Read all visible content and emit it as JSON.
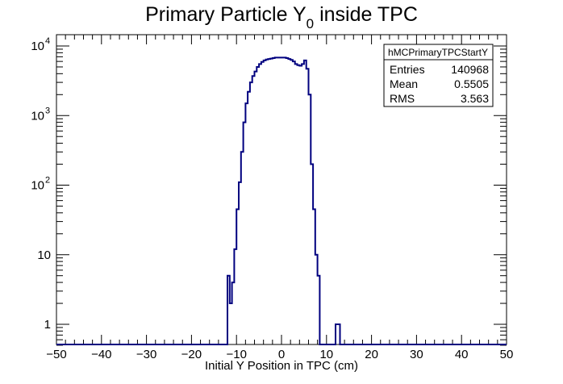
{
  "chart_data": {
    "type": "histogram",
    "title": "Primary Particle Y",
    "title_subscript": "0",
    "title_suffix": " inside TPC",
    "xlabel": "Initial Y Position in TPC (cm)",
    "ylabel": "",
    "xlim": [
      -50,
      50
    ],
    "ylim": [
      0.5,
      12000
    ],
    "yscale": "log",
    "grid": false,
    "x_ticks": [
      -50,
      -40,
      -30,
      -20,
      -10,
      0,
      10,
      20,
      30,
      40,
      50
    ],
    "x_tick_labels": [
      "−50",
      "−40",
      "−30",
      "−20",
      "−10",
      "0",
      "10",
      "20",
      "30",
      "40",
      "50"
    ],
    "y_ticks": [
      1,
      10,
      100,
      1000,
      10000
    ],
    "y_tick_base": [
      "1",
      "10",
      "10",
      "10",
      "10"
    ],
    "y_tick_exp": [
      "",
      "",
      "2",
      "3",
      "4"
    ],
    "line_color": "#00007f",
    "bin_width": 0.5,
    "x": [
      -12.0,
      -11.5,
      -11.0,
      -10.5,
      -10.0,
      -9.5,
      -9.0,
      -8.5,
      -8.0,
      -7.5,
      -7.0,
      -6.5,
      -6.0,
      -5.5,
      -5.0,
      -4.5,
      -4.0,
      -3.5,
      -3.0,
      -2.5,
      -2.0,
      -1.5,
      -1.0,
      -0.5,
      0.0,
      0.5,
      1.0,
      1.5,
      2.0,
      2.5,
      3.0,
      3.5,
      4.0,
      4.5,
      5.0,
      5.5,
      6.0,
      6.5,
      7.0,
      7.5,
      8.0,
      8.5,
      9.0,
      9.5,
      10.0,
      10.5,
      11.0,
      11.5,
      12.0,
      12.5,
      13.0,
      13.5,
      14.0,
      14.5
    ],
    "y": [
      5,
      2,
      4,
      12,
      45,
      110,
      300,
      800,
      1500,
      2200,
      3000,
      3700,
      4300,
      5000,
      5500,
      5900,
      6200,
      6400,
      6500,
      6600,
      6700,
      6800,
      6800,
      6800,
      6800,
      6800,
      6700,
      6500,
      6300,
      6000,
      5500,
      5300,
      5200,
      5500,
      6200,
      4700,
      2000,
      200,
      45,
      10,
      5,
      0,
      0,
      0,
      0,
      0,
      0,
      0,
      1,
      1,
      0,
      0,
      0,
      0
    ],
    "stats": {
      "name": "hMCPrimaryTPCStartY",
      "rows": [
        {
          "label": "Entries",
          "value": "140968"
        },
        {
          "label": "Mean",
          "value": "0.5505"
        },
        {
          "label": "RMS",
          "value": "3.563"
        }
      ]
    }
  }
}
